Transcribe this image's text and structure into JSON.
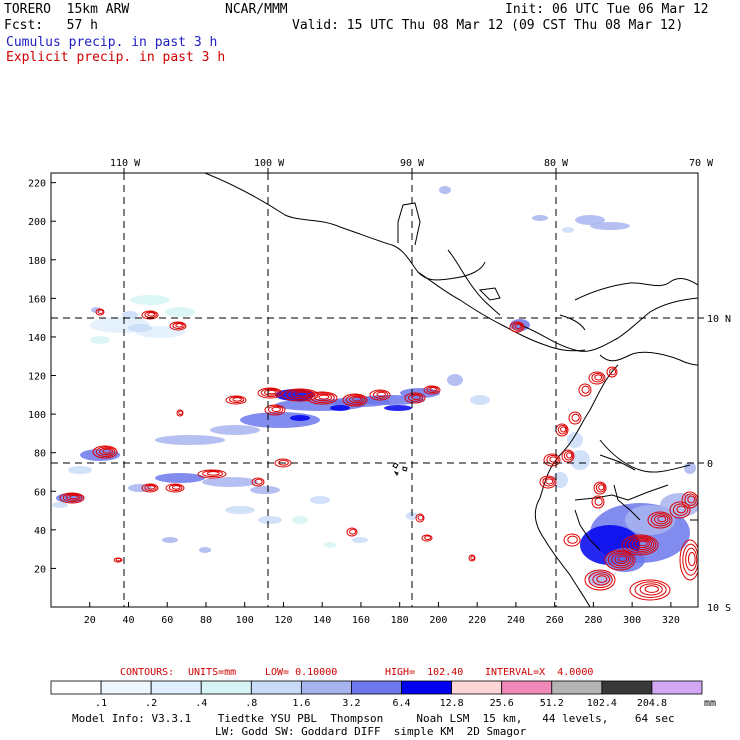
{
  "header": {
    "model": "TORERO  15km ARW",
    "org": "NCAR/MMM",
    "init": "Init: 06 UTC Tue 06 Mar 12",
    "fcst": "Fcst:   57 h",
    "valid": "Valid: 15 UTC Thu 08 Mar 12 (09 CST Thu 08 Mar 12)",
    "legend_cumulus": "Cumulus precip. in past 3 h",
    "legend_explicit": "Explicit precip. in past 3 h"
  },
  "chart_data": {
    "type": "heatmap",
    "title": "Cumulus / Explicit precip. in past 3 h",
    "x_grid": {
      "min": 0,
      "max": 334,
      "ticks": [
        20,
        40,
        60,
        80,
        100,
        120,
        140,
        160,
        180,
        200,
        220,
        240,
        260,
        280,
        300,
        320
      ]
    },
    "y_grid": {
      "min": 0,
      "max": 225,
      "ticks": [
        20,
        40,
        60,
        80,
        100,
        120,
        140,
        160,
        180,
        200,
        220
      ]
    },
    "lon_labels": [
      "110 W",
      "100 W",
      "90 W",
      "80 W",
      "70 W"
    ],
    "lat_labels": [
      "10 N",
      "0",
      "10 S"
    ],
    "contours": {
      "label": "CONTOURS:",
      "units": "UNITS=mm",
      "low": "LOW= 0.10000",
      "high": "HIGH=  102.40",
      "interval": "INTERVAL=X  4.0000"
    },
    "colorbar": {
      "levels": [
        ".1",
        ".2",
        ".4",
        ".8",
        "1.6",
        "3.2",
        "6.4",
        "12.8",
        "25.6",
        "51.2",
        "102.4",
        "204.8"
      ],
      "colors": [
        "#ffffff",
        "#eef6fe",
        "#dfeffd",
        "#d6f4f4",
        "#c8dcf8",
        "#a8b4f0",
        "#6c78ec",
        "#0000ee",
        "#fcd6d6",
        "#f088b8",
        "#b4b4b4",
        "#383838",
        "#d2a8f4"
      ],
      "units": "mm"
    }
  },
  "footer": {
    "line1": "Model Info: V3.3.1    Tiedtke YSU PBL  Thompson     Noah LSM  15 km,   44 levels,    64 sec",
    "line2": "LW: Godd SW: Goddard DIFF  simple KM  2D Smagor"
  }
}
